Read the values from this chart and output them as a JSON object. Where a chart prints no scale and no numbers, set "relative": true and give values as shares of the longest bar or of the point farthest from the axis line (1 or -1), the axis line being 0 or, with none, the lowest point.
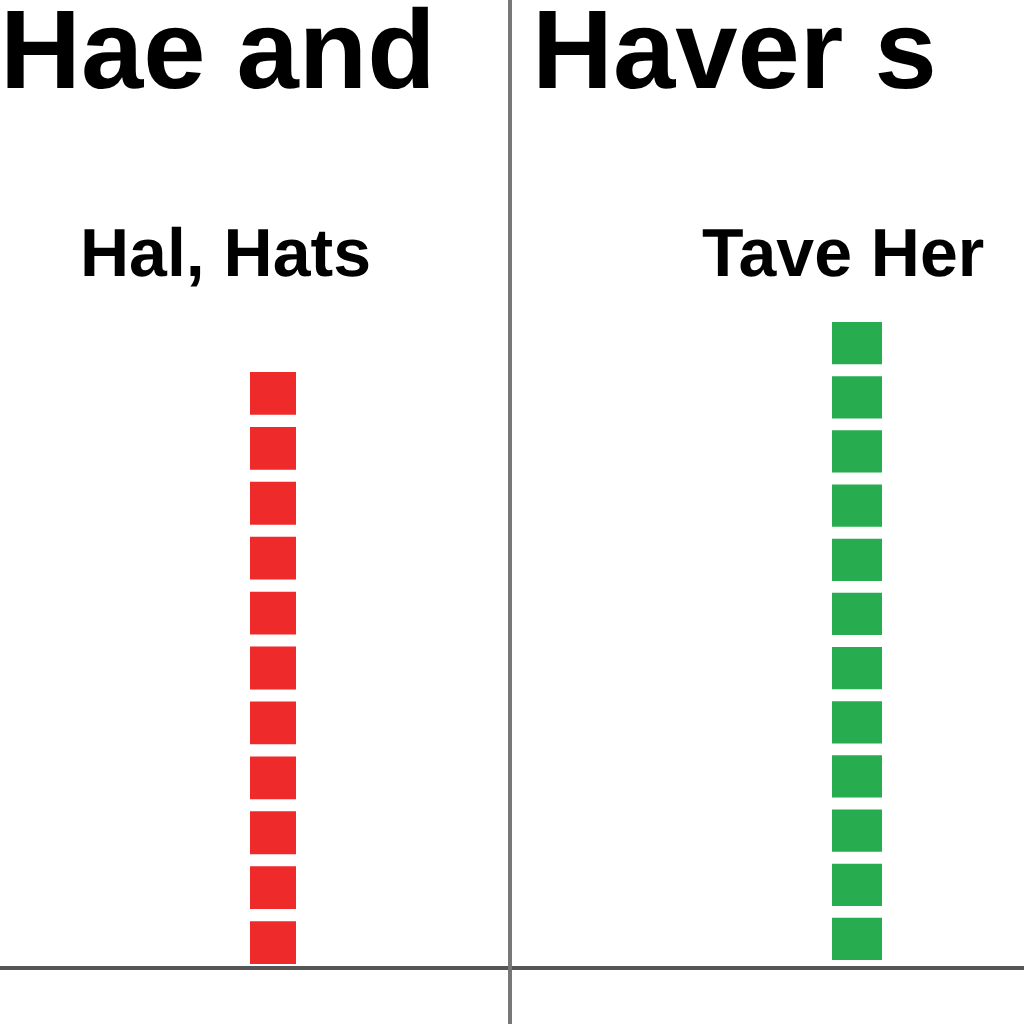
{
  "chart_data": [
    {
      "type": "bar",
      "title": "Hae and",
      "subtitle": "Hal, Hats",
      "orientation": "horizontal",
      "relative": true,
      "categories": [
        null,
        null,
        null,
        null,
        null,
        null,
        null,
        null,
        null,
        null,
        null
      ],
      "values": [
        1,
        1,
        1,
        1,
        1,
        1,
        1,
        1,
        1,
        1,
        1
      ],
      "color": "#ee2a2a",
      "grid": false,
      "legend": false
    },
    {
      "type": "bar",
      "title": "Haver s",
      "subtitle": "Tave Her",
      "orientation": "horizontal",
      "relative": true,
      "categories": [
        null,
        null,
        null,
        null,
        null,
        null,
        null,
        null,
        null,
        null,
        null,
        null
      ],
      "values": [
        1,
        1,
        1,
        1,
        1,
        1,
        1,
        1,
        1,
        1,
        1,
        1
      ],
      "color": "#27ad4f",
      "grid": false,
      "legend": false
    }
  ]
}
